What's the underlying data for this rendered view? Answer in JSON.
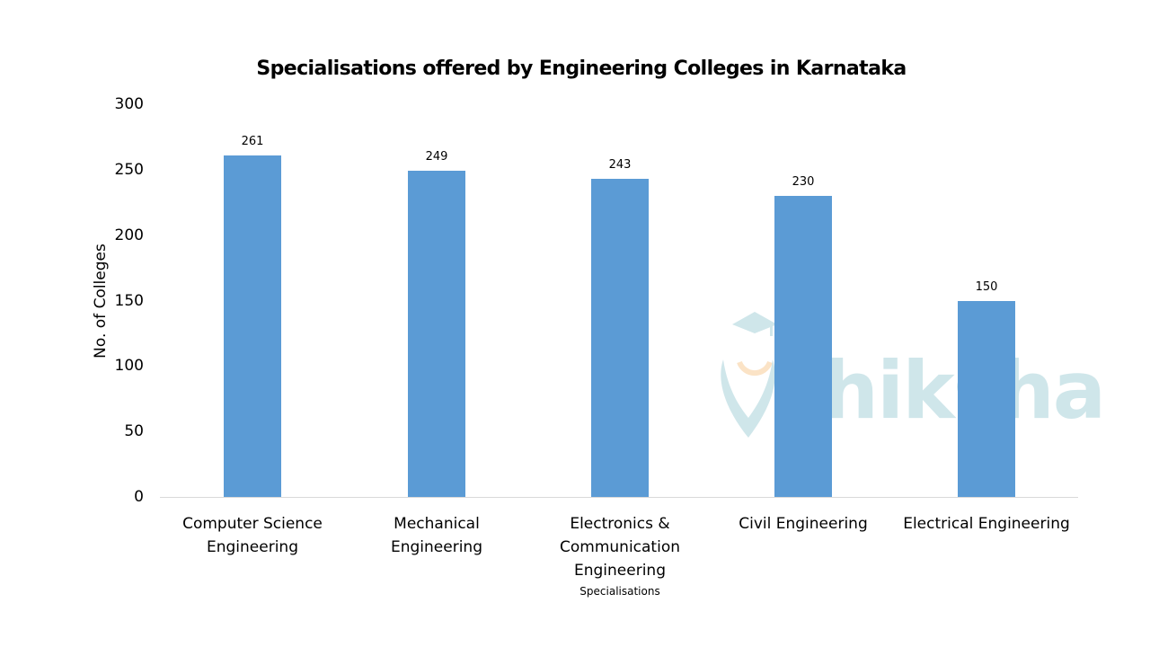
{
  "chart_data": {
    "type": "bar",
    "title": "Specialisations offered by Engineering Colleges in Karnataka",
    "xlabel": "Specialisations",
    "ylabel": "No. of Colleges",
    "categories": [
      "Computer Science\nEngineering",
      "Mechanical\nEngineering",
      "Electronics &\nCommunication\nEngineering",
      "Civil Engineering",
      "Electrical Engineering"
    ],
    "values": [
      261,
      249,
      243,
      230,
      150
    ],
    "ylim": [
      0,
      300
    ],
    "yticks": [
      "0",
      "50",
      "100",
      "150",
      "200",
      "250",
      "300"
    ],
    "grid": false,
    "legend": null,
    "data_labels": true,
    "bar_color": "#5b9bd5"
  },
  "watermark": {
    "text": "shiksha",
    "color": "#cfe6ea"
  }
}
